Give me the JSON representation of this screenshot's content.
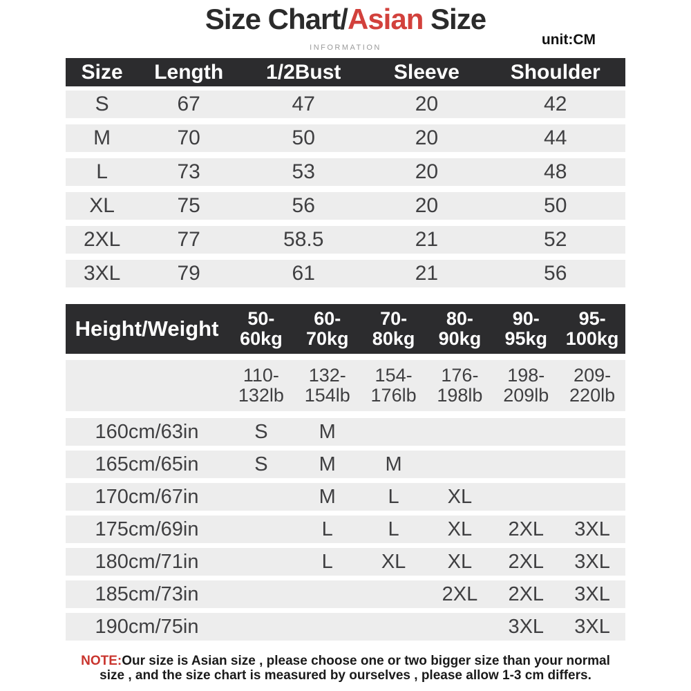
{
  "page": {
    "title": {
      "part1": "Size Chart/",
      "highlight": "Asian",
      "part2": " Size"
    },
    "subtitle": "INFORMATION",
    "unit_label": "unit:CM"
  },
  "colors": {
    "accent_red": "#d2413c",
    "note_red": "#c9352e",
    "header_bar_bg": "#2c2c2e",
    "row_bg": "#ededed",
    "body_text": "#3f3f41",
    "muted_text": "#9a9a9a"
  },
  "size_table": {
    "columns": [
      "Size",
      "Length",
      "1/2Bust",
      "Sleeve",
      "Shoulder"
    ],
    "rows": [
      [
        "S",
        "67",
        "47",
        "20",
        "42"
      ],
      [
        "M",
        "70",
        "50",
        "20",
        "44"
      ],
      [
        "L",
        "73",
        "53",
        "20",
        "48"
      ],
      [
        "XL",
        "75",
        "56",
        "20",
        "50"
      ],
      [
        "2XL",
        "77",
        "58.5",
        "21",
        "52"
      ],
      [
        "3XL",
        "79",
        "61",
        "21",
        "56"
      ]
    ]
  },
  "fit_table": {
    "corner_label": "Height/Weight",
    "weight_columns_kg": [
      {
        "line1": "50-",
        "line2": "60kg"
      },
      {
        "line1": "60-",
        "line2": "70kg"
      },
      {
        "line1": "70-",
        "line2": "80kg"
      },
      {
        "line1": "80-",
        "line2": "90kg"
      },
      {
        "line1": "90-",
        "line2": "95kg"
      },
      {
        "line1": "95-",
        "line2": "100kg"
      }
    ],
    "weight_columns_lb": [
      {
        "line1": "110-",
        "line2": "132lb"
      },
      {
        "line1": "132-",
        "line2": "154lb"
      },
      {
        "line1": "154-",
        "line2": "176lb"
      },
      {
        "line1": "176-",
        "line2": "198lb"
      },
      {
        "line1": "198-",
        "line2": "209lb"
      },
      {
        "line1": "209-",
        "line2": "220lb"
      }
    ],
    "rows": [
      {
        "height": "160cm/63in",
        "sizes": [
          "S",
          "M",
          "",
          "",
          "",
          ""
        ]
      },
      {
        "height": "165cm/65in",
        "sizes": [
          "S",
          "M",
          "M",
          "",
          "",
          ""
        ]
      },
      {
        "height": "170cm/67in",
        "sizes": [
          "",
          "M",
          "L",
          "XL",
          "",
          ""
        ]
      },
      {
        "height": "175cm/69in",
        "sizes": [
          "",
          "L",
          "L",
          "XL",
          "2XL",
          "3XL"
        ]
      },
      {
        "height": "180cm/71in",
        "sizes": [
          "",
          "L",
          "XL",
          "XL",
          "2XL",
          "3XL"
        ]
      },
      {
        "height": "185cm/73in",
        "sizes": [
          "",
          "",
          "",
          "2XL",
          "2XL",
          "3XL"
        ]
      },
      {
        "height": "190cm/75in",
        "sizes": [
          "",
          "",
          "",
          "",
          "3XL",
          "3XL"
        ]
      }
    ]
  },
  "note": {
    "label": "NOTE:",
    "line1": "Our size is Asian size , please choose one or two bigger size than your normal",
    "line2": "size , and the size chart is measured by ourselves , please allow 1-3 cm differs."
  }
}
